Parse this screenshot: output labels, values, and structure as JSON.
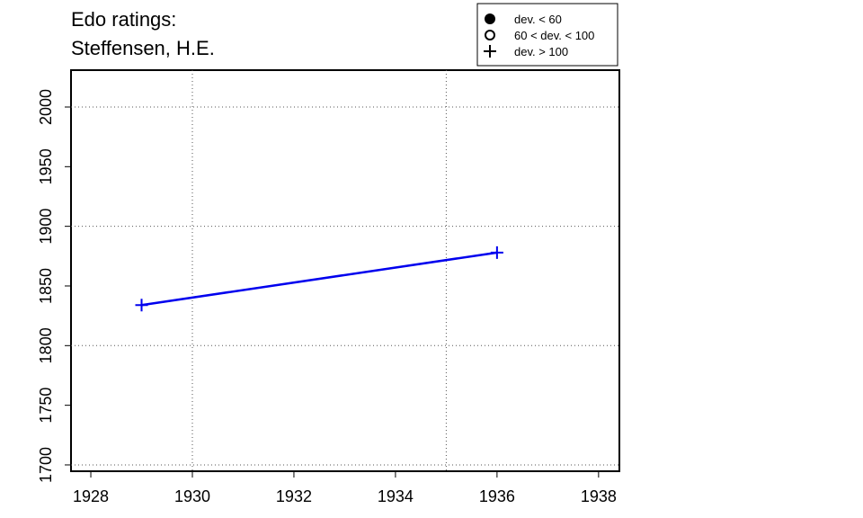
{
  "chart_data": {
    "type": "line",
    "title": [
      "Edo ratings:",
      "Steffensen, H.E."
    ],
    "x": [
      1929,
      1936
    ],
    "series": [
      {
        "values": [
          1834,
          1878
        ],
        "color": "#0000ee",
        "marker": "plus"
      }
    ],
    "xlim": [
      1927.61,
      1938.41
    ],
    "ylim": [
      1694.7,
      2030.9
    ],
    "xticks": [
      1928,
      1930,
      1932,
      1934,
      1936,
      1938
    ],
    "yticks": [
      1700,
      1750,
      1800,
      1850,
      1900,
      1950,
      2000
    ],
    "xgrid": [
      1930,
      1935
    ],
    "ygrid": [
      1700,
      1800,
      1900,
      2000
    ],
    "legend": [
      {
        "label": "dev. < 60",
        "marker": "filled"
      },
      {
        "label": "60 < dev. < 100",
        "marker": "open"
      },
      {
        "label": "dev. > 100",
        "marker": "plus"
      }
    ],
    "legend_position": "top-right"
  }
}
